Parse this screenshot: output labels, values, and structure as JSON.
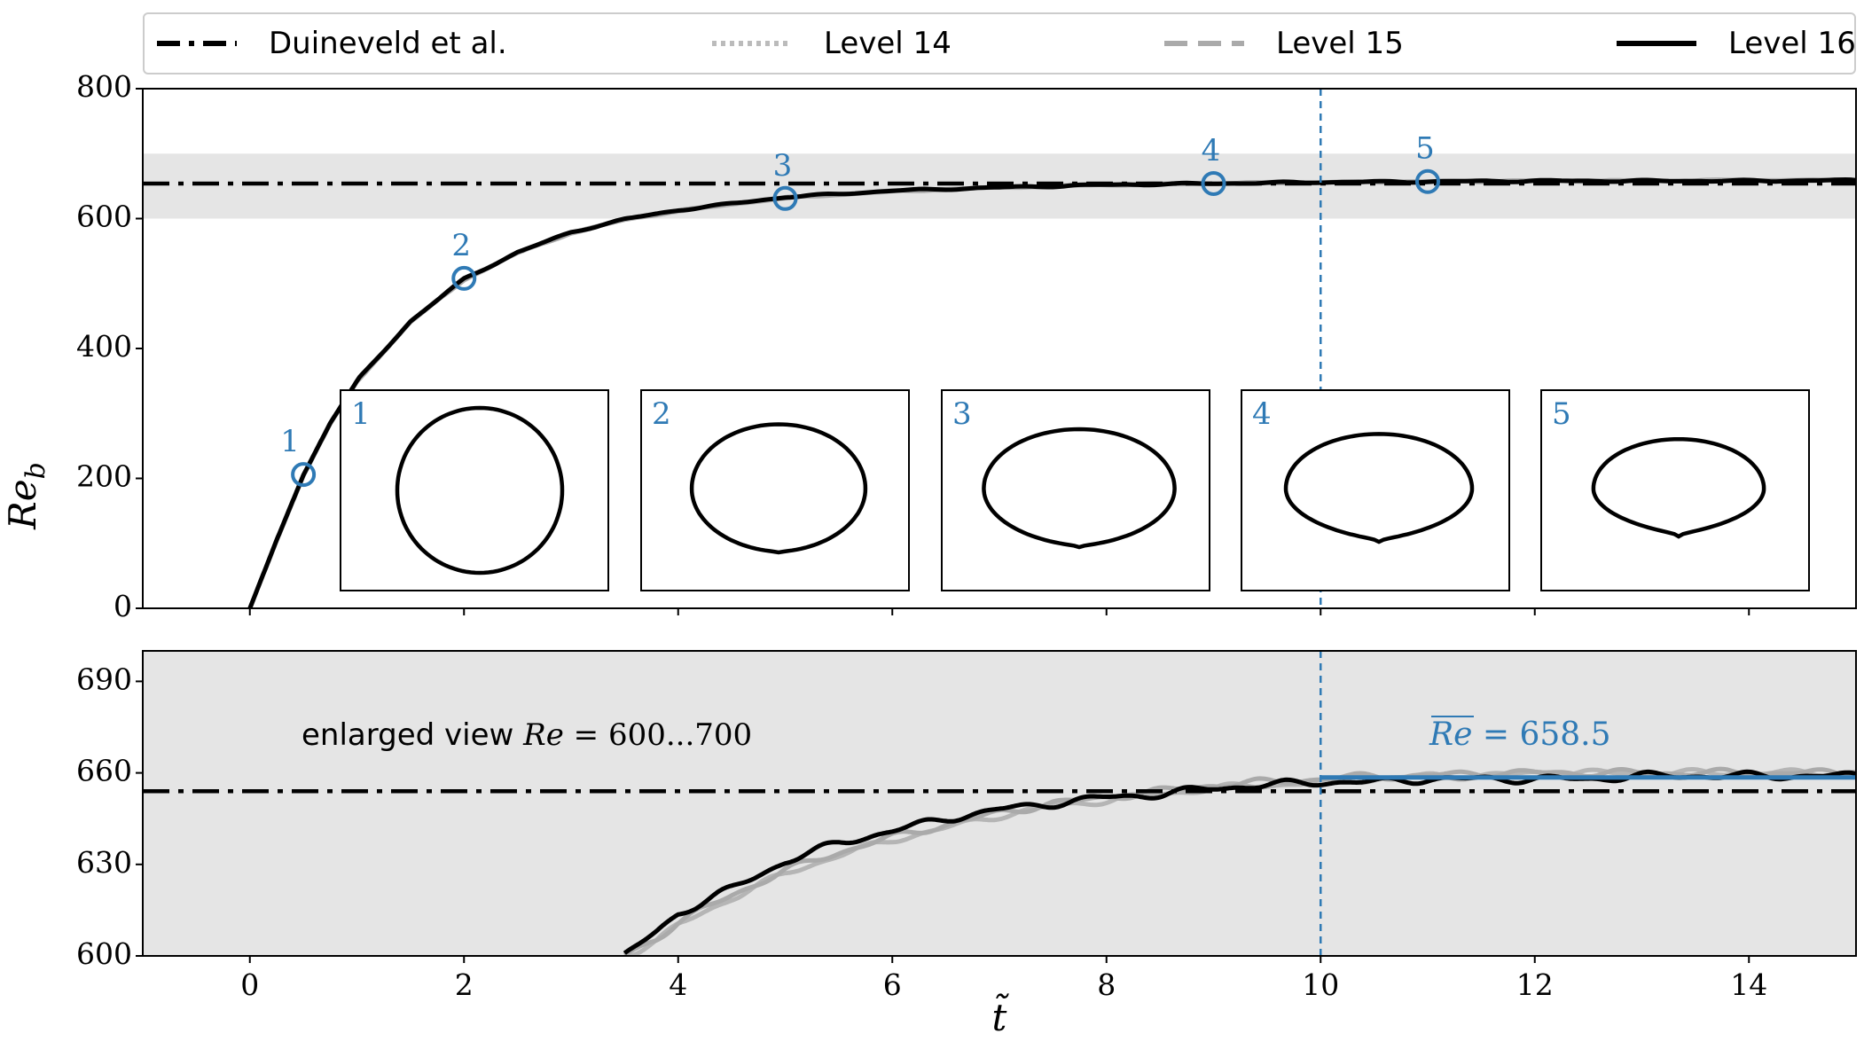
{
  "legend": [
    {
      "label": "Duineveld et al.",
      "style": "dashdot",
      "color": "#000000"
    },
    {
      "label": "Level 14",
      "style": "dotted",
      "color": "#bbbbbb"
    },
    {
      "label": "Level 15",
      "style": "dashed",
      "color": "#aaaaaa"
    },
    {
      "label": "Level 16",
      "style": "solid",
      "color": "#000000"
    }
  ],
  "colors": {
    "accent": "#2f7ab5",
    "band": "#e5e5e5",
    "gray_series": "#aaaaaa"
  },
  "chart_data": [
    {
      "type": "line",
      "panel": "top",
      "xlabel": "t̃",
      "ylabel": "Re_b",
      "xlim": [
        -1,
        15
      ],
      "ylim": [
        0,
        800
      ],
      "yticks": [
        0,
        200,
        400,
        600,
        800
      ],
      "xticks": [
        0,
        2,
        4,
        6,
        8,
        10,
        12,
        14
      ],
      "reference_line": {
        "name": "Duineveld et al.",
        "y": 654
      },
      "shaded_band": [
        600,
        700
      ],
      "vline_x": 10,
      "series": [
        {
          "name": "Level 16",
          "x": [
            0,
            0.25,
            0.5,
            0.75,
            1,
            1.5,
            2,
            2.5,
            3,
            3.5,
            4,
            5,
            6,
            7,
            8,
            9,
            10,
            11,
            12,
            13,
            14,
            15
          ],
          "values": [
            0,
            105,
            205,
            285,
            350,
            442,
            507,
            548,
            579,
            599,
            613,
            633,
            643,
            648,
            652,
            654,
            656,
            657,
            658,
            658,
            658,
            659
          ]
        },
        {
          "name": "Level 15",
          "x": [
            0,
            0.25,
            0.5,
            0.75,
            1,
            1.5,
            2,
            2.5,
            3,
            3.5,
            4,
            5,
            6,
            7,
            8,
            9,
            10,
            11,
            12,
            13,
            14,
            15
          ],
          "values": [
            0,
            104,
            204,
            284,
            349,
            441,
            506,
            547,
            578,
            598,
            612,
            632,
            642,
            648,
            652,
            654,
            656,
            657,
            658,
            658,
            659,
            659
          ]
        },
        {
          "name": "Level 14",
          "x": [
            0,
            0.25,
            0.5,
            0.75,
            1,
            1.5,
            2,
            2.5,
            3,
            3.5,
            4,
            5,
            6,
            7,
            8,
            9,
            10,
            11,
            12,
            13,
            14,
            15
          ],
          "values": [
            0,
            104,
            204,
            284,
            349,
            441,
            506,
            547,
            578,
            598,
            612,
            632,
            642,
            648,
            652,
            654,
            656,
            657,
            658,
            658,
            659,
            659
          ]
        }
      ],
      "markers": [
        {
          "label": "1",
          "x": 0.5,
          "y": 206
        },
        {
          "label": "2",
          "x": 2.0,
          "y": 508
        },
        {
          "label": "3",
          "x": 5.0,
          "y": 631
        },
        {
          "label": "4",
          "x": 9.0,
          "y": 654
        },
        {
          "label": "5",
          "x": 11.0,
          "y": 657
        }
      ],
      "insets": [
        {
          "label": "1",
          "aspect": 1.0,
          "flat_bottom": 0.0
        },
        {
          "label": "2",
          "aspect": 1.36,
          "flat_bottom": 0.05
        },
        {
          "label": "3",
          "aspect": 1.63,
          "flat_bottom": 0.1
        },
        {
          "label": "4",
          "aspect": 1.75,
          "flat_bottom": 0.18
        },
        {
          "label": "5",
          "aspect": 1.78,
          "flat_bottom": 0.22
        }
      ]
    },
    {
      "type": "line",
      "panel": "bottom",
      "xlabel": "t̃",
      "xlim": [
        -1,
        15
      ],
      "ylim": [
        600,
        700
      ],
      "yticks": [
        600,
        630,
        660,
        690
      ],
      "xticks": [
        0,
        2,
        4,
        6,
        8,
        10,
        12,
        14
      ],
      "reference_line": {
        "name": "Duineveld et al.",
        "y": 654
      },
      "vline_x": 10,
      "annotation": "enlarged view Re = 600...700",
      "mean_line": {
        "label": "Re = 658.5",
        "value": 658.5,
        "x_from": 10,
        "x_to": 15
      },
      "series": [
        {
          "name": "Level 16",
          "x": [
            3.5,
            3.8,
            4.0,
            4.5,
            5.0,
            5.5,
            6.0,
            6.5,
            7.0,
            7.5,
            8.0,
            8.5,
            9.0,
            9.5,
            10.0,
            10.5,
            11.0,
            11.5,
            12.0,
            12.5,
            13.0,
            13.5,
            14.0,
            14.5,
            15.0
          ],
          "values": [
            600,
            608,
            614,
            622,
            631,
            637,
            641,
            645,
            648,
            650,
            652,
            653,
            655,
            656,
            657,
            657,
            658,
            658,
            658,
            658,
            659,
            659,
            659,
            659,
            659
          ]
        },
        {
          "name": "Level 15",
          "x": [
            3.5,
            3.8,
            4.0,
            4.5,
            5.0,
            5.5,
            6.0,
            6.5,
            7.0,
            7.5,
            8.0,
            8.5,
            9.0,
            9.5,
            10.0,
            10.5,
            11.0,
            11.5,
            12.0,
            12.5,
            13.0,
            13.5,
            14.0,
            14.5,
            15.0
          ],
          "values": [
            600,
            606,
            611,
            620,
            628,
            634,
            639,
            643,
            647,
            650,
            652,
            654,
            656,
            657,
            658,
            659,
            659,
            660,
            660,
            660,
            660,
            660,
            660,
            660,
            660
          ]
        },
        {
          "name": "Level 14",
          "x": [
            3.5,
            3.8,
            4.0,
            4.5,
            5.0,
            5.5,
            6.0,
            6.5,
            7.0,
            7.5,
            8.0,
            8.5,
            9.0,
            9.5,
            10.0,
            10.5,
            11.0,
            11.5,
            12.0,
            12.5,
            13.0,
            13.5,
            14.0,
            14.5,
            15.0
          ],
          "values": [
            600,
            605,
            610,
            619,
            627,
            633,
            638,
            642,
            646,
            649,
            651,
            653,
            655,
            656,
            657,
            658,
            659,
            659,
            660,
            660,
            660,
            660,
            660,
            660,
            660
          ]
        }
      ]
    }
  ]
}
